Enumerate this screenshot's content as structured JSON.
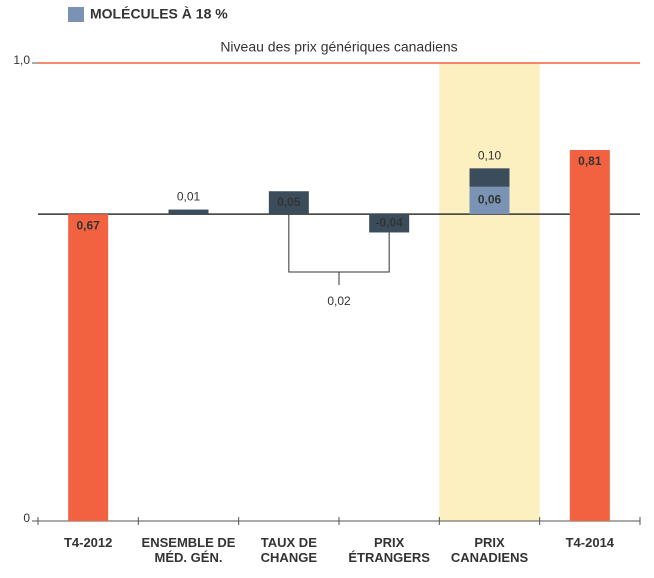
{
  "chart_data": {
    "type": "waterfall",
    "categories": [
      "T4-2012",
      "ENSEMBLE DE\nMÉD. GÉN.",
      "TAUX DE\nCHANGE",
      "PRIX\nÉTRANGERS",
      "PRIX\nCANADIENS",
      "T4-2014"
    ],
    "values": [
      0.67,
      0.01,
      0.05,
      -0.04,
      0.1,
      0.81
    ],
    "value_labels": [
      "0,67",
      "0,01",
      "0,05",
      "-0,04",
      "0,10",
      "0,81"
    ],
    "bar_kinds": [
      "total",
      "change",
      "change",
      "change",
      "change",
      "total"
    ],
    "total_color": "#f26241",
    "change_color": "#3b4d5b",
    "series": [
      {
        "name": "MOLÉCULES À 18 %",
        "color": "#7a93b5",
        "values": [
          null,
          null,
          null,
          null,
          0.06,
          null
        ],
        "value_labels": [
          null,
          null,
          null,
          null,
          "0,06",
          null
        ]
      }
    ],
    "reference_line": {
      "value": 1,
      "label": "Niveau des prix génériques canadiens",
      "color": "#f26241"
    },
    "bracket": {
      "from": 2,
      "to": 3,
      "value": 0.02,
      "label": "0,02"
    },
    "highlight": {
      "category": 4,
      "color": "#fcefc0"
    },
    "ylim": [
      0,
      1
    ],
    "yticks": [
      0,
      {
        "value": 1,
        "label": "1,0"
      }
    ]
  }
}
